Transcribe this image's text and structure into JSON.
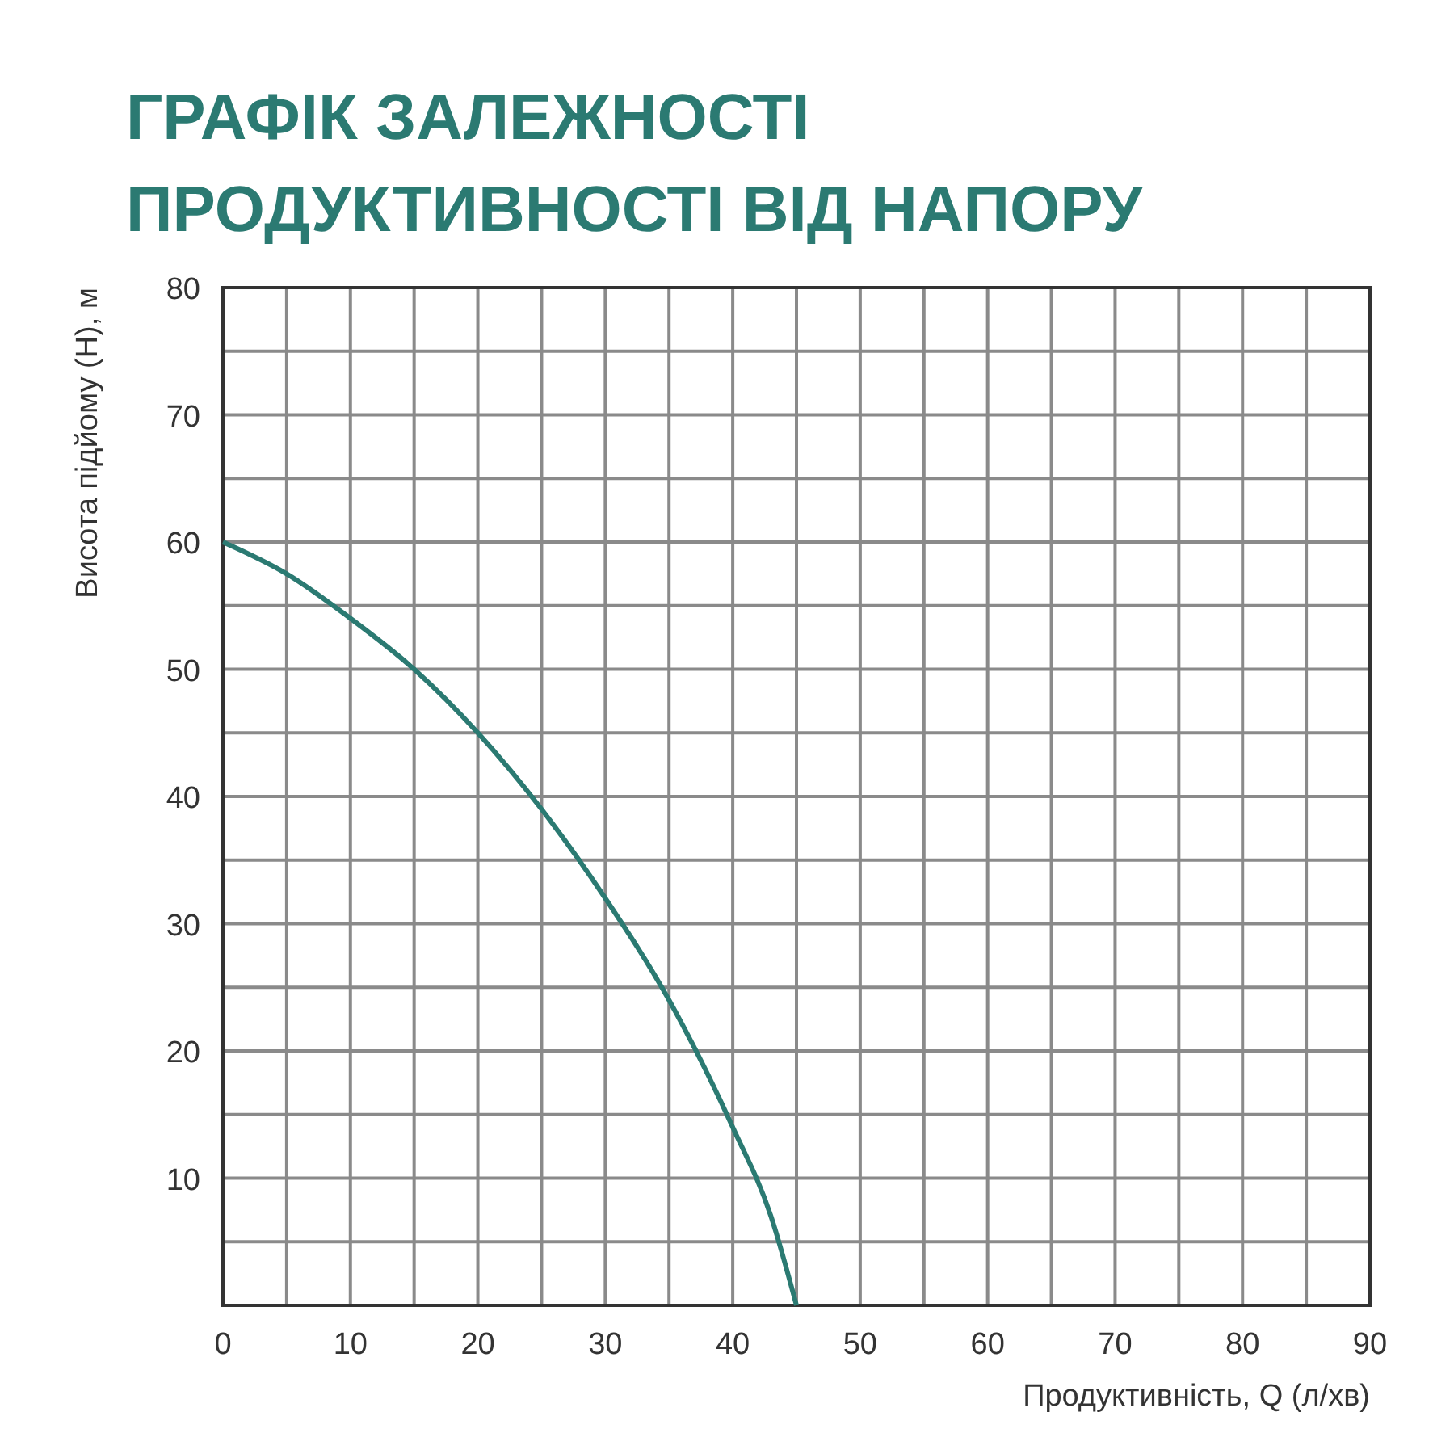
{
  "chart_data": {
    "type": "line",
    "title": "ГРАФІК ЗАЛЕЖНОСТІ ПРОДУКТИВНОСТІ ВІД НАПОРУ",
    "xlabel": "Продуктивність, Q (л/хв)",
    "ylabel": "Висота підйому (Н), м",
    "x": [
      0,
      5,
      10,
      15,
      20,
      25,
      30,
      35,
      40,
      43,
      45
    ],
    "series": [
      {
        "color": "#2b7a72",
        "values": [
          60,
          57.5,
          54,
          50,
          45,
          39,
          32,
          24,
          14,
          7,
          0
        ]
      }
    ],
    "xlim": [
      0,
      90
    ],
    "ylim": [
      0,
      80
    ],
    "xticks": [
      0,
      {
        "value": 5,
        "label": null
      },
      10,
      {
        "value": 15,
        "label": null
      },
      20,
      {
        "value": 25,
        "label": null
      },
      30,
      {
        "value": 35,
        "label": null
      },
      40,
      {
        "value": 45,
        "label": null
      },
      50,
      {
        "value": 55,
        "label": null
      },
      60,
      {
        "value": 65,
        "label": null
      },
      70,
      {
        "value": 75,
        "label": null
      },
      80,
      {
        "value": 85,
        "label": null
      },
      90
    ],
    "yticks": [
      {
        "value": 0,
        "label": null
      },
      {
        "value": 5,
        "label": null
      },
      10,
      {
        "value": 15,
        "label": null
      },
      20,
      {
        "value": 25,
        "label": null
      },
      30,
      {
        "value": 35,
        "label": null
      },
      40,
      {
        "value": 45,
        "label": null
      },
      50,
      {
        "value": 55,
        "label": null
      },
      60,
      {
        "value": 65,
        "label": null
      },
      70,
      {
        "value": 75,
        "label": null
      },
      80
    ],
    "grid": true,
    "marker": "none",
    "line_style": "solid"
  }
}
